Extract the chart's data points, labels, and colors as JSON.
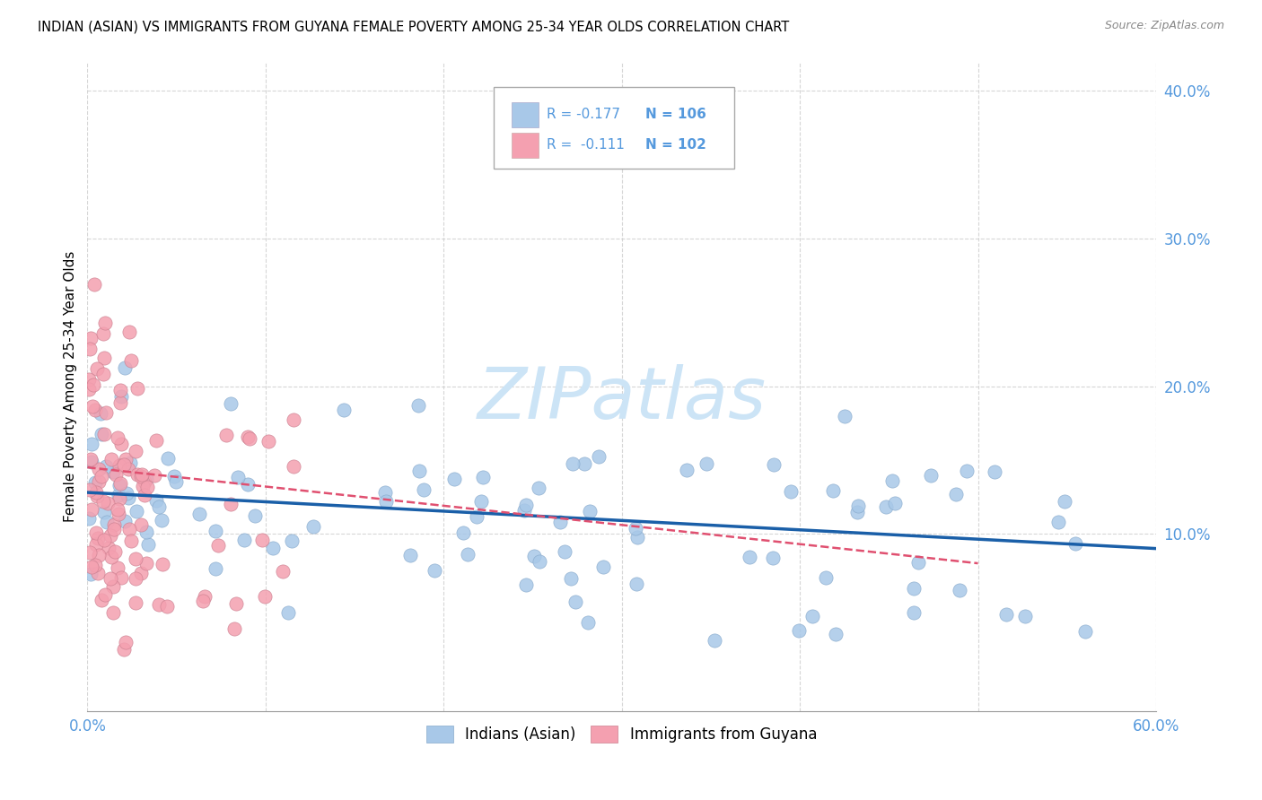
{
  "title": "INDIAN (ASIAN) VS IMMIGRANTS FROM GUYANA FEMALE POVERTY AMONG 25-34 YEAR OLDS CORRELATION CHART",
  "source": "Source: ZipAtlas.com",
  "ylabel": "Female Poverty Among 25-34 Year Olds",
  "xlim": [
    0.0,
    0.6
  ],
  "ylim": [
    -0.02,
    0.42
  ],
  "xticks": [
    0.0,
    0.1,
    0.2,
    0.3,
    0.4,
    0.5,
    0.6
  ],
  "xticklabels": [
    "0.0%",
    "",
    "",
    "",
    "",
    "",
    "60.0%"
  ],
  "yticks": [
    0.1,
    0.2,
    0.3,
    0.4
  ],
  "yticklabels_right": [
    "10.0%",
    "20.0%",
    "30.0%",
    "40.0%"
  ],
  "color_blue": "#a8c8e8",
  "color_pink": "#f4a0b0",
  "trendline_blue": "#1a5fa8",
  "trendline_pink": "#e05070",
  "watermark": "ZIPatlas",
  "watermark_color": "#cce4f6",
  "background_color": "#ffffff",
  "grid_color": "#cccccc",
  "label_color": "#5599dd",
  "legend_label1": "Indians (Asian)",
  "legend_label2": "Immigrants from Guyana",
  "N_blue": 106,
  "N_pink": 102,
  "blue_trend_x": [
    0.0,
    0.6
  ],
  "blue_trend_y": [
    0.128,
    0.09
  ],
  "pink_trend_x": [
    0.0,
    0.5
  ],
  "pink_trend_y": [
    0.145,
    0.08
  ]
}
